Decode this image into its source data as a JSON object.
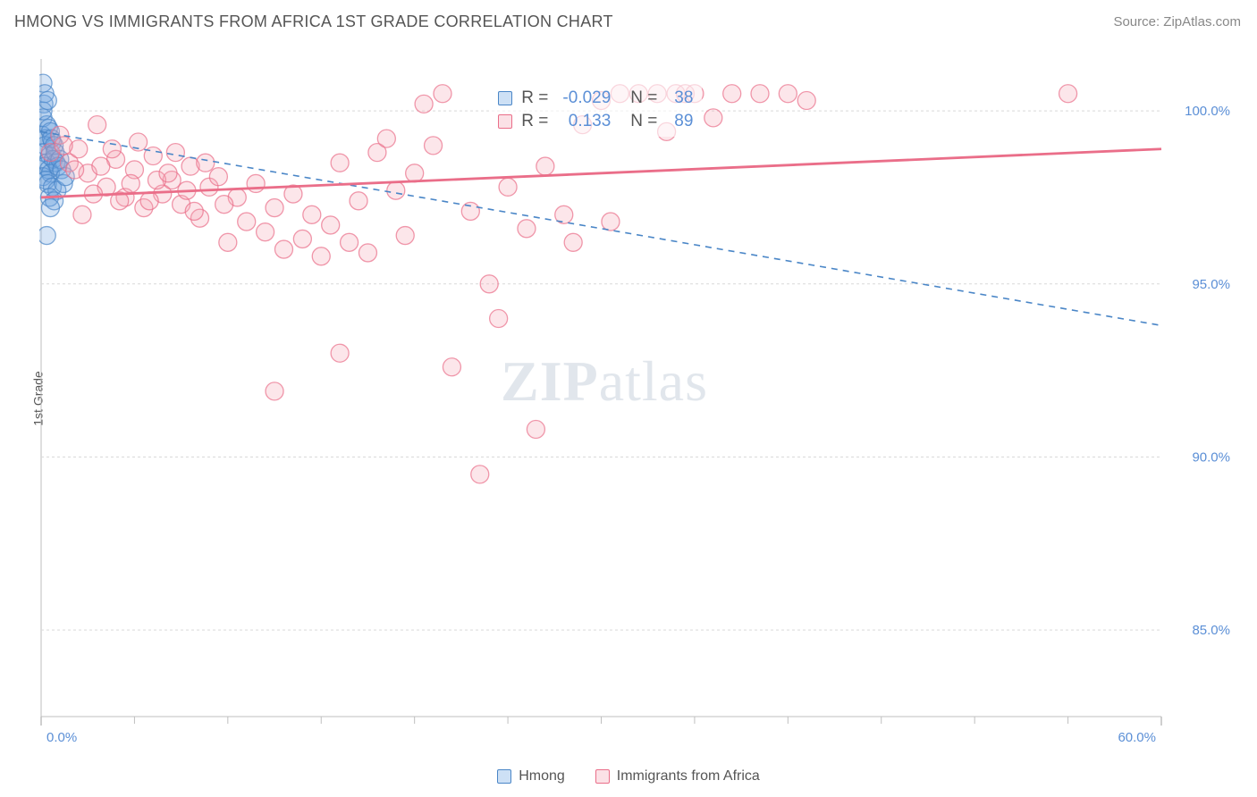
{
  "title": "HMONG VS IMMIGRANTS FROM AFRICA 1ST GRADE CORRELATION CHART",
  "source": "Source: ZipAtlas.com",
  "y_axis_label": "1st Grade",
  "watermark_a": "ZIP",
  "watermark_b": "atlas",
  "chart": {
    "type": "scatter",
    "xlim": [
      0,
      60
    ],
    "ylim": [
      82.5,
      101.5
    ],
    "x_ticks": [
      0,
      60
    ],
    "x_tick_labels": [
      "0.0%",
      "60.0%"
    ],
    "x_minor_ticks": [
      5,
      10,
      15,
      20,
      25,
      30,
      35,
      40,
      45,
      50,
      55
    ],
    "y_ticks": [
      85,
      90,
      95,
      100
    ],
    "y_tick_labels": [
      "85.0%",
      "90.0%",
      "95.0%",
      "100.0%"
    ],
    "background_color": "#ffffff",
    "grid_color": "#d9d9d9",
    "grid_dash": "3,3",
    "axis_color": "#bfbfbf",
    "marker_radius": 10,
    "marker_fill_opacity": 0.28,
    "marker_stroke_width": 1.3,
    "series": [
      {
        "name": "Hmong",
        "color": "#6aa3e0",
        "stroke": "#4a86c7",
        "R": -0.029,
        "N": 38,
        "trend": {
          "x1": 0,
          "y1": 99.4,
          "x2": 60,
          "y2": 93.8,
          "dash": "7,6",
          "width": 1.6
        },
        "points": [
          [
            0.1,
            100.8
          ],
          [
            0.15,
            100.2
          ],
          [
            0.2,
            100.5
          ],
          [
            0.1,
            99.8
          ],
          [
            0.3,
            99.6
          ],
          [
            0.05,
            99.3
          ],
          [
            0.4,
            99.5
          ],
          [
            0.25,
            99.2
          ],
          [
            0.1,
            100.0
          ],
          [
            0.35,
            100.3
          ],
          [
            0.2,
            99.0
          ],
          [
            0.5,
            99.4
          ],
          [
            0.6,
            99.1
          ],
          [
            0.15,
            98.8
          ],
          [
            0.45,
            98.7
          ],
          [
            0.3,
            98.5
          ],
          [
            0.55,
            99.2
          ],
          [
            0.7,
            99.0
          ],
          [
            0.2,
            98.4
          ],
          [
            0.4,
            98.3
          ],
          [
            0.65,
            98.6
          ],
          [
            0.1,
            98.1
          ],
          [
            0.8,
            98.5
          ],
          [
            0.5,
            98.2
          ],
          [
            0.25,
            98.0
          ],
          [
            0.75,
            98.8
          ],
          [
            0.9,
            98.4
          ],
          [
            0.35,
            97.9
          ],
          [
            1.0,
            98.6
          ],
          [
            0.6,
            97.8
          ],
          [
            0.85,
            97.7
          ],
          [
            1.1,
            98.3
          ],
          [
            0.45,
            97.5
          ],
          [
            1.2,
            97.9
          ],
          [
            0.7,
            97.4
          ],
          [
            0.3,
            96.4
          ],
          [
            1.3,
            98.1
          ],
          [
            0.5,
            97.2
          ]
        ]
      },
      {
        "name": "Immigrants from Africa",
        "color": "#f4a4b4",
        "stroke": "#ea6e89",
        "R": 0.133,
        "N": 89,
        "trend": {
          "x1": 0,
          "y1": 97.5,
          "x2": 60,
          "y2": 98.9,
          "dash": "none",
          "width": 2.8
        },
        "points": [
          [
            0.5,
            98.8
          ],
          [
            1.0,
            99.3
          ],
          [
            1.5,
            98.5
          ],
          [
            2.0,
            98.9
          ],
          [
            2.5,
            98.2
          ],
          [
            3.0,
            99.6
          ],
          [
            3.5,
            97.8
          ],
          [
            4.0,
            98.6
          ],
          [
            4.5,
            97.5
          ],
          [
            5.0,
            98.3
          ],
          [
            5.5,
            97.2
          ],
          [
            6.0,
            98.7
          ],
          [
            6.5,
            97.6
          ],
          [
            7.0,
            98.0
          ],
          [
            7.5,
            97.3
          ],
          [
            8.0,
            98.4
          ],
          [
            8.5,
            96.9
          ],
          [
            9.0,
            97.8
          ],
          [
            9.5,
            98.1
          ],
          [
            10.0,
            96.2
          ],
          [
            10.5,
            97.5
          ],
          [
            11.0,
            96.8
          ],
          [
            11.5,
            97.9
          ],
          [
            12.0,
            96.5
          ],
          [
            12.5,
            97.2
          ],
          [
            13.0,
            96.0
          ],
          [
            13.5,
            97.6
          ],
          [
            14.0,
            96.3
          ],
          [
            14.5,
            97.0
          ],
          [
            15.0,
            95.8
          ],
          [
            15.5,
            96.7
          ],
          [
            16.0,
            98.5
          ],
          [
            12.5,
            91.9
          ],
          [
            16.5,
            96.2
          ],
          [
            17.0,
            97.4
          ],
          [
            17.5,
            95.9
          ],
          [
            18.0,
            98.8
          ],
          [
            18.5,
            99.2
          ],
          [
            19.0,
            97.7
          ],
          [
            19.5,
            96.4
          ],
          [
            20.0,
            98.2
          ],
          [
            16.0,
            93.0
          ],
          [
            20.5,
            100.2
          ],
          [
            21.0,
            99.0
          ],
          [
            21.5,
            100.5
          ],
          [
            22.0,
            92.6
          ],
          [
            23.0,
            97.1
          ],
          [
            23.5,
            89.5
          ],
          [
            24.0,
            95.0
          ],
          [
            24.5,
            94.0
          ],
          [
            25.0,
            97.8
          ],
          [
            26.0,
            96.6
          ],
          [
            26.5,
            90.8
          ],
          [
            27.0,
            98.4
          ],
          [
            28.0,
            97.0
          ],
          [
            28.5,
            96.2
          ],
          [
            29.0,
            99.6
          ],
          [
            30.0,
            100.3
          ],
          [
            30.5,
            96.8
          ],
          [
            31.0,
            100.5
          ],
          [
            32.0,
            100.5
          ],
          [
            33.0,
            100.5
          ],
          [
            33.5,
            99.4
          ],
          [
            34.0,
            100.5
          ],
          [
            34.5,
            100.5
          ],
          [
            35.0,
            100.5
          ],
          [
            36.0,
            99.8
          ],
          [
            37.0,
            100.5
          ],
          [
            38.5,
            100.5
          ],
          [
            40.0,
            100.5
          ],
          [
            41.0,
            100.3
          ],
          [
            55.0,
            100.5
          ],
          [
            1.2,
            99.0
          ],
          [
            2.2,
            97.0
          ],
          [
            3.2,
            98.4
          ],
          [
            4.2,
            97.4
          ],
          [
            5.2,
            99.1
          ],
          [
            6.2,
            98.0
          ],
          [
            7.2,
            98.8
          ],
          [
            8.2,
            97.1
          ],
          [
            1.8,
            98.3
          ],
          [
            2.8,
            97.6
          ],
          [
            3.8,
            98.9
          ],
          [
            4.8,
            97.9
          ],
          [
            5.8,
            97.4
          ],
          [
            6.8,
            98.2
          ],
          [
            7.8,
            97.7
          ],
          [
            8.8,
            98.5
          ],
          [
            9.8,
            97.3
          ]
        ]
      }
    ]
  },
  "stat_legend": {
    "rows": [
      {
        "swatch": 0,
        "r_label": "R =",
        "r_val": "-0.029",
        "n_label": "N =",
        "n_val": "38"
      },
      {
        "swatch": 1,
        "r_label": "R =",
        "r_val": "0.133",
        "n_label": "N =",
        "n_val": "89"
      }
    ]
  },
  "bottom_legend": [
    {
      "swatch": 0,
      "label": "Hmong"
    },
    {
      "swatch": 1,
      "label": "Immigrants from Africa"
    }
  ]
}
